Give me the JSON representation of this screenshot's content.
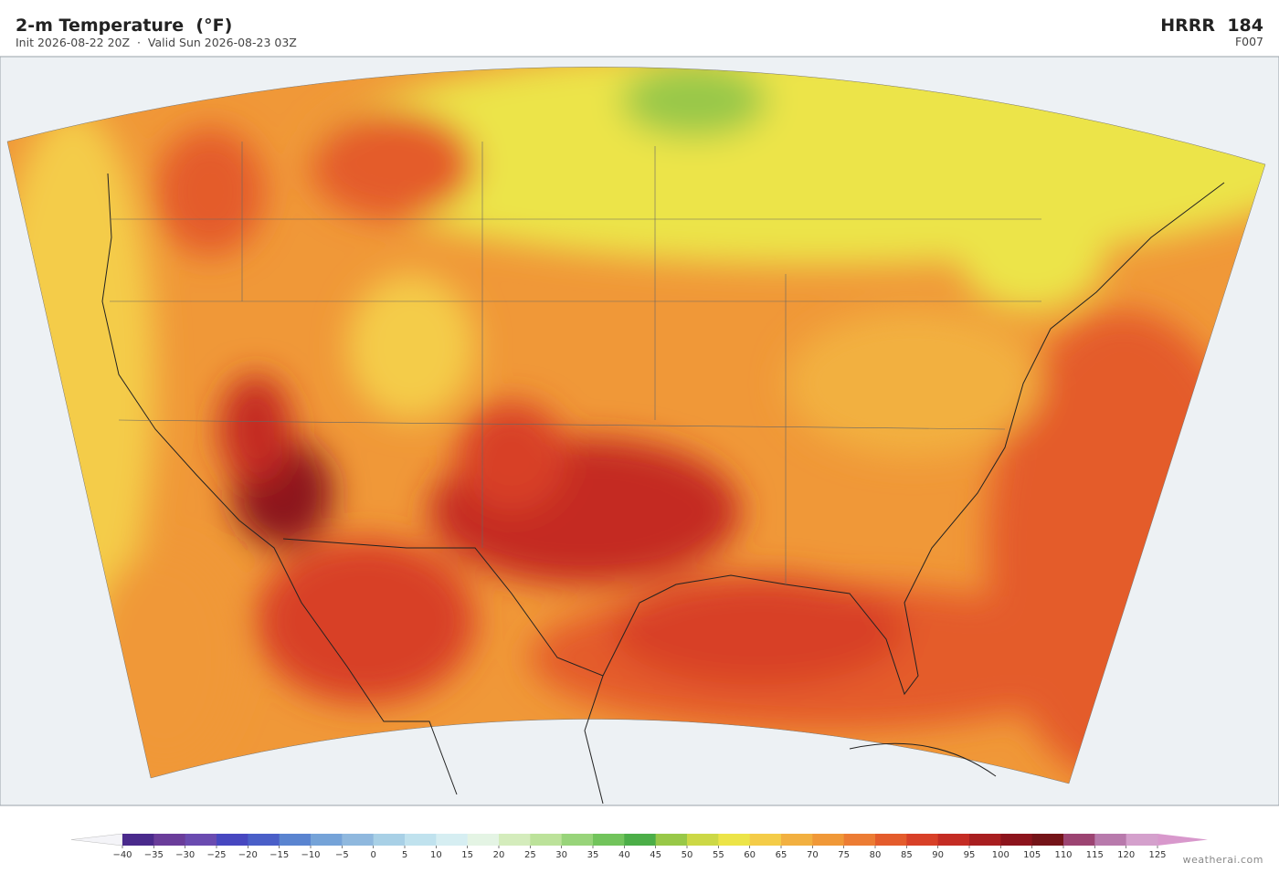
{
  "header": {
    "title": "2-m Temperature  (°F)",
    "subtitle": "Init 2026-08-22 20Z  ·  Valid Sun 2026-08-23 03Z",
    "model": "HRRR",
    "run": "184",
    "forecast_hour": "F007"
  },
  "colorbar": {
    "ticks": [
      {
        "value": -40,
        "label": "−40"
      },
      {
        "value": -35,
        "label": "−35"
      },
      {
        "value": -30,
        "label": "−30"
      },
      {
        "value": -25,
        "label": "−25"
      },
      {
        "value": -20,
        "label": "−20"
      },
      {
        "value": -15,
        "label": "−15"
      },
      {
        "value": -10,
        "label": "−10"
      },
      {
        "value": -5,
        "label": "−5"
      },
      0,
      5,
      10,
      15,
      20,
      25,
      30,
      35,
      40,
      45,
      50,
      55,
      60,
      65,
      70,
      75,
      80,
      85,
      90,
      95,
      100,
      105,
      110,
      115,
      120,
      125
    ],
    "colors": [
      "#4a2a8c",
      "#6a3d9a",
      "#6a4bb0",
      "#4747c0",
      "#4a5fc8",
      "#5a84d0",
      "#75a3d8",
      "#8fb8de",
      "#a8d0e6",
      "#c0e2ee",
      "#d6eef2",
      "#e4f4e4",
      "#d4ecbc",
      "#bce29a",
      "#98d47a",
      "#72c45c",
      "#4cae48",
      "#98c848",
      "#ccd846",
      "#ece448",
      "#f4cc48",
      "#f2b040",
      "#f09838",
      "#ec7c34",
      "#e45c2c",
      "#d84028",
      "#c42c24",
      "#a81e20",
      "#8c141c",
      "#741418",
      "#9c4472",
      "#b87aac",
      "#d4a0cc"
    ],
    "under_color": "#f4f4f8",
    "over_color": "#d898cc"
  },
  "footer": {
    "credit": "weatherai.com"
  }
}
